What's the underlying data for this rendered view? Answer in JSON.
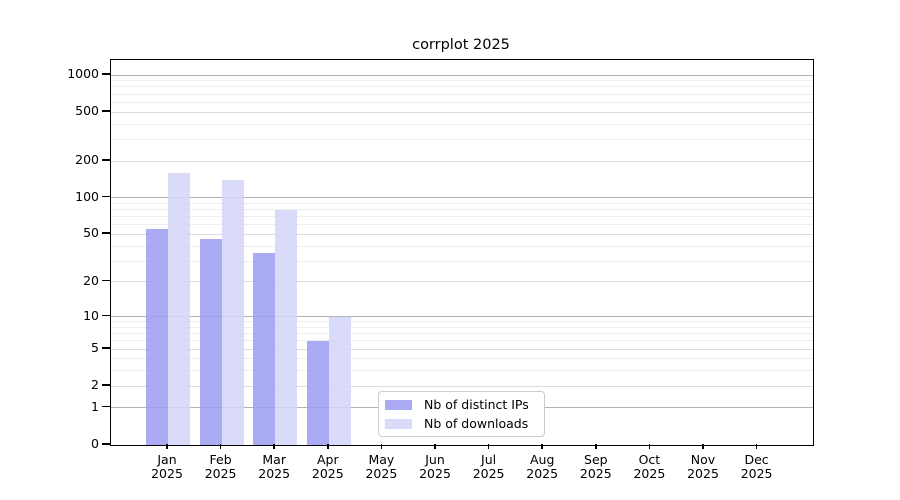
{
  "chart_data": {
    "type": "bar",
    "title": "corrplot 2025",
    "categories": [
      "Jan",
      "Feb",
      "Mar",
      "Apr",
      "May",
      "Jun",
      "Jul",
      "Aug",
      "Sep",
      "Oct",
      "Nov",
      "Dec"
    ],
    "category_year": "2025",
    "series": [
      {
        "name": "Nb of distinct IPs",
        "color": "#9f9ff2",
        "values": [
          55,
          46,
          35,
          6,
          0,
          0,
          0,
          0,
          0,
          0,
          0,
          0
        ]
      },
      {
        "name": "Nb of downloads",
        "color": "#d4d4f8",
        "values": [
          160,
          140,
          79,
          10,
          0,
          0,
          0,
          0,
          0,
          0,
          0,
          0
        ]
      }
    ],
    "bar_opacity": 0.87,
    "yscale": "log1p",
    "yticks": [
      0,
      1,
      2,
      5,
      10,
      20,
      50,
      100,
      200,
      500,
      1000
    ],
    "major_gridlines": [
      1,
      10,
      100,
      1000
    ],
    "ylim": [
      0,
      1320
    ],
    "xlabel": "",
    "ylabel": "",
    "grid": true,
    "legend_position": "lower-center"
  },
  "colors": {
    "background": "#ffffff",
    "axis": "#000000",
    "text": "#000000",
    "grid_major": "#b3b3b3",
    "grid_mid": "#dddddd",
    "grid_minor": "#eeeeee",
    "legend_border": "#cccccc"
  }
}
